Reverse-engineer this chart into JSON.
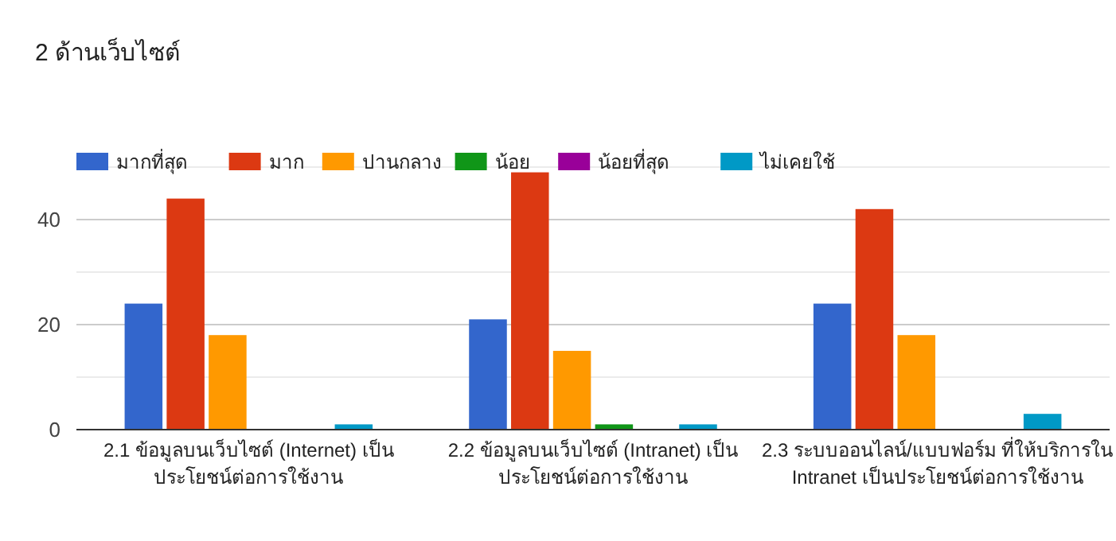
{
  "chart_data": {
    "type": "bar",
    "title": "2 ด้านเว็บไซต์",
    "categories": [
      "2.1 ข้อมูลบนเว็บไซต์ (Internet) เป็น\nประโยชน์ต่อการใช้งาน",
      "2.2 ข้อมูลบนเว็บไซต์ (Intranet) เป็น\nประโยชน์ต่อการใช้งาน",
      "2.3 ระบบออนไลน์/แบบฟอร์ม ที่ให้บริการใน\nIntranet เป็นประโยชน์ต่อการใช้งาน"
    ],
    "series": [
      {
        "name": "มากที่สุด",
        "color": "#3366cc",
        "values": [
          24,
          21,
          24
        ]
      },
      {
        "name": "มาก",
        "color": "#dc3912",
        "values": [
          44,
          49,
          42
        ]
      },
      {
        "name": "ปานกลาง",
        "color": "#ff9900",
        "values": [
          18,
          15,
          18
        ]
      },
      {
        "name": "น้อย",
        "color": "#109618",
        "values": [
          0,
          1,
          0
        ]
      },
      {
        "name": "น้อยที่สุด",
        "color": "#990099",
        "values": [
          0,
          0,
          0
        ]
      },
      {
        "name": "ไม่เคยใช้",
        "color": "#0099c6",
        "values": [
          1,
          1,
          3
        ]
      }
    ],
    "ylim": [
      0,
      50
    ],
    "yticks": [
      0,
      {
        "value": 10,
        "label": null
      },
      20,
      {
        "value": 30,
        "label": null
      },
      40,
      {
        "value": 50,
        "label": null
      }
    ],
    "grid": true,
    "legend": "top left"
  }
}
